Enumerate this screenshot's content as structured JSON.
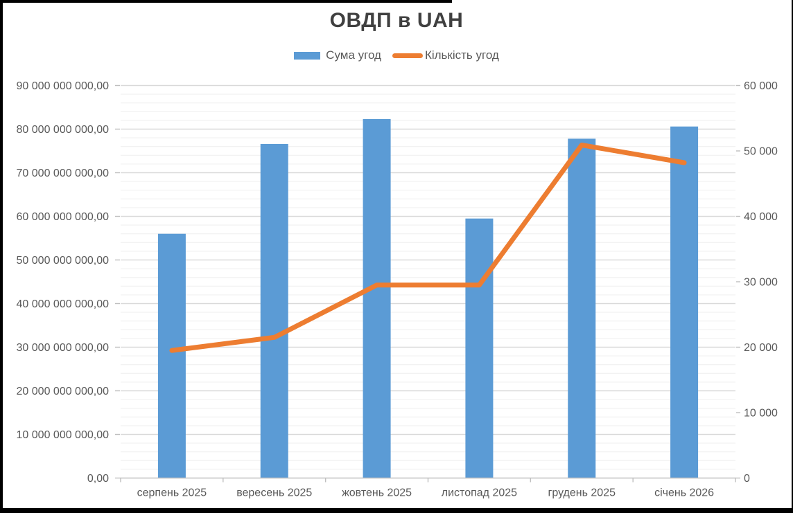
{
  "header": {
    "title": "ОВДП в UAH",
    "title_color": "#404040"
  },
  "legend": {
    "items": [
      {
        "label": "Сума угод",
        "type": "bar",
        "color": "#5B9BD5"
      },
      {
        "label": "Кількість угод",
        "type": "line",
        "color": "#ED7D31"
      }
    ],
    "position": "top"
  },
  "chart_data": {
    "type": "combo-bar-line",
    "title": "ОВДП в UAH",
    "categories": [
      "серпень 2025",
      "вересень 2025",
      "жовтень 2025",
      "листопад 2025",
      "грудень 2025",
      "січень 2026"
    ],
    "series": [
      {
        "name": "Сума угод",
        "type": "bar",
        "axis": "left",
        "color": "#5B9BD5",
        "values": [
          56000000000,
          76600000000,
          82300000000,
          59500000000,
          77800000000,
          80600000000
        ]
      },
      {
        "name": "Кількість угод",
        "type": "line",
        "axis": "right",
        "color": "#ED7D31",
        "values": [
          19500,
          21500,
          29500,
          29500,
          50900,
          48200
        ]
      }
    ],
    "left_axis": {
      "min": 0,
      "max": 90000000000,
      "major_step": 10000000000,
      "minor_step": 2000000000,
      "tick_labels": [
        "0,00",
        "10 000 000 000,00",
        "20 000 000 000,00",
        "30 000 000 000,00",
        "40 000 000 000,00",
        "50 000 000 000,00",
        "60 000 000 000,00",
        "70 000 000 000,00",
        "80 000 000 000,00",
        "90 000 000 000,00"
      ]
    },
    "right_axis": {
      "min": 0,
      "max": 60000,
      "major_step": 10000,
      "tick_labels": [
        "0",
        "10 000",
        "20 000",
        "30 000",
        "40 000",
        "50 000",
        "60 000"
      ]
    },
    "grid": {
      "major_on": true,
      "minor_on": true,
      "major_color": "#D9D9D9",
      "minor_color": "#F0F0F0"
    },
    "axis_line_color": "#BFBFBF",
    "text_color": "#595959",
    "background": "#FFFFFF",
    "frame_color": "#000000",
    "legend_position": "top"
  }
}
